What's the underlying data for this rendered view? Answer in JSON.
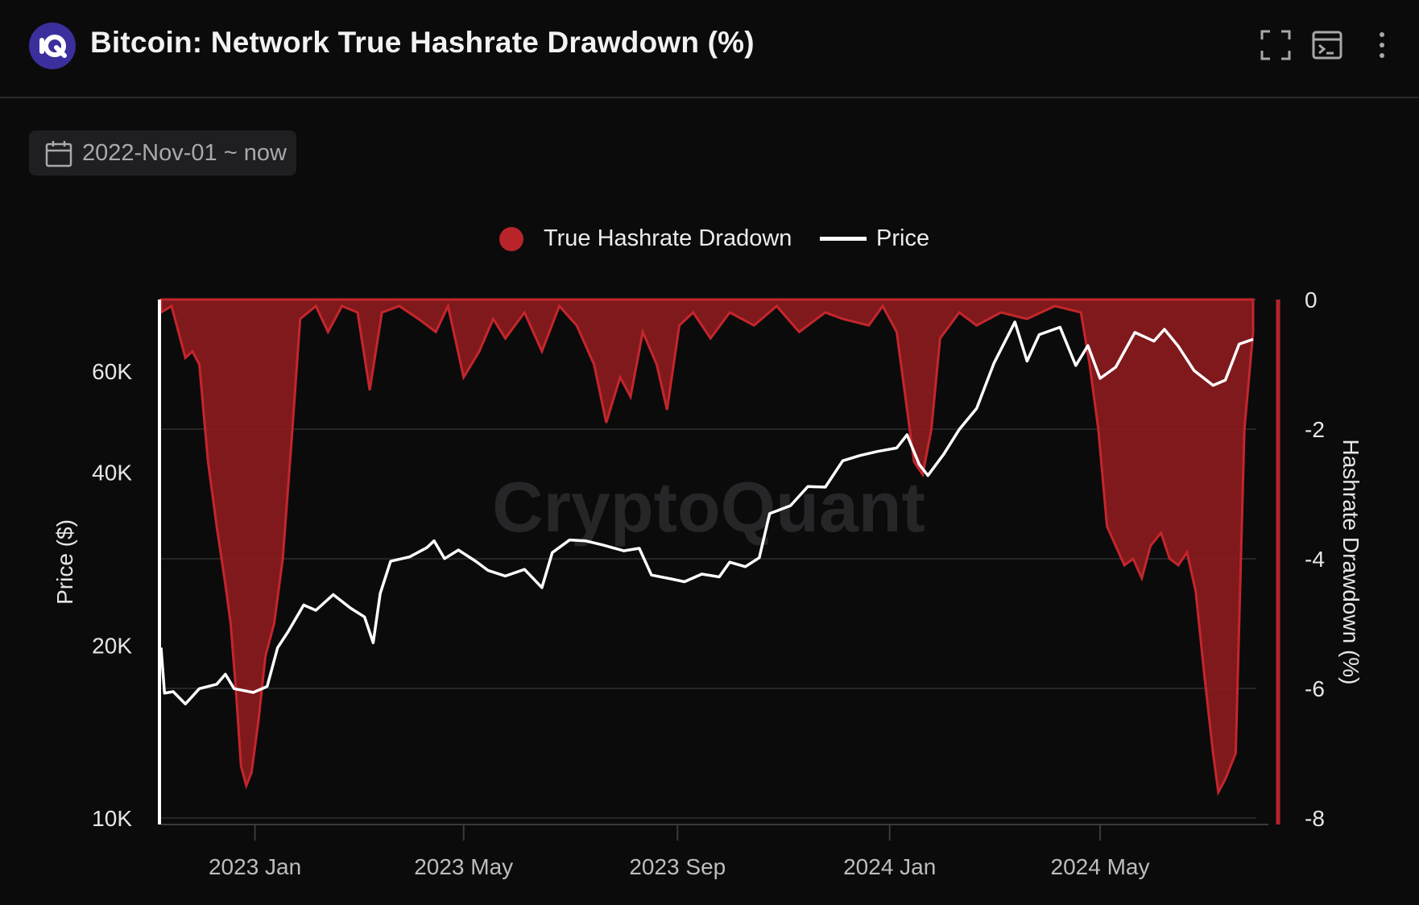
{
  "header": {
    "title": "Bitcoin: Network True Hashrate Drawdown (%)",
    "icons": [
      "logo-icon",
      "fullscreen-icon",
      "terminal-icon",
      "more-vert-icon"
    ]
  },
  "date_range": {
    "label": "2022-Nov-01 ~ now",
    "icon": "calendar-icon"
  },
  "watermark": "CryptoQuant",
  "colors": {
    "drawdown": "#b8242a",
    "price": "#ffffff",
    "background": "#0b0b0c"
  },
  "chart_data": {
    "type": "area",
    "title": "Bitcoin: Network True Hashrate Drawdown (%)",
    "legend": [
      "True Hashrate Dradown",
      "Price"
    ],
    "legend_position": "top-center",
    "grid": true,
    "x_ticks": [
      "2023 Jan",
      "2023 May",
      "2023 Sep",
      "2024 Jan",
      "2024 May"
    ],
    "x_tick_dates": [
      "2023-01-01",
      "2023-05-01",
      "2023-09-01",
      "2024-01-01",
      "2024-05-01"
    ],
    "x_range": [
      "2022-11-08",
      "2024-07-28"
    ],
    "left_axis": {
      "label": "Price ($)",
      "scale": "log",
      "ticks": [
        "10K",
        "20K",
        "40K",
        "60K"
      ],
      "tick_values": [
        10000,
        20000,
        40000,
        60000
      ],
      "range": [
        10000,
        80000
      ]
    },
    "right_axis": {
      "label": "Hashrate Drawdown (%)",
      "ticks": [
        "0",
        "-2",
        "-4",
        "-6",
        "-8"
      ],
      "tick_values": [
        0,
        -2,
        -4,
        -6,
        -8
      ],
      "range": [
        -8,
        0
      ]
    },
    "series": [
      {
        "name": "True Hashrate Dradown",
        "axis": "right",
        "type": "area",
        "points": [
          [
            "2022-11-08",
            -0.2
          ],
          [
            "2022-11-14",
            -0.1
          ],
          [
            "2022-11-18",
            -0.5
          ],
          [
            "2022-11-22",
            -0.9
          ],
          [
            "2022-11-26",
            -0.8
          ],
          [
            "2022-11-30",
            -1.0
          ],
          [
            "2022-12-05",
            -2.5
          ],
          [
            "2022-12-10",
            -3.5
          ],
          [
            "2022-12-15",
            -4.4
          ],
          [
            "2022-12-18",
            -5.0
          ],
          [
            "2022-12-21",
            -6.0
          ],
          [
            "2022-12-24",
            -7.2
          ],
          [
            "2022-12-27",
            -7.5
          ],
          [
            "2022-12-30",
            -7.3
          ],
          [
            "2023-01-03",
            -6.5
          ],
          [
            "2023-01-07",
            -5.5
          ],
          [
            "2023-01-12",
            -5.0
          ],
          [
            "2023-01-17",
            -4.0
          ],
          [
            "2023-01-22",
            -2.2
          ],
          [
            "2023-01-27",
            -0.3
          ],
          [
            "2023-02-05",
            -0.1
          ],
          [
            "2023-02-12",
            -0.5
          ],
          [
            "2023-02-20",
            -0.1
          ],
          [
            "2023-03-01",
            -0.2
          ],
          [
            "2023-03-08",
            -1.4
          ],
          [
            "2023-03-15",
            -0.2
          ],
          [
            "2023-03-25",
            -0.1
          ],
          [
            "2023-04-05",
            -0.3
          ],
          [
            "2023-04-15",
            -0.5
          ],
          [
            "2023-04-22",
            -0.1
          ],
          [
            "2023-05-01",
            -1.2
          ],
          [
            "2023-05-10",
            -0.8
          ],
          [
            "2023-05-18",
            -0.3
          ],
          [
            "2023-05-25",
            -0.6
          ],
          [
            "2023-06-05",
            -0.2
          ],
          [
            "2023-06-15",
            -0.8
          ],
          [
            "2023-06-25",
            -0.1
          ],
          [
            "2023-07-05",
            -0.4
          ],
          [
            "2023-07-15",
            -1.0
          ],
          [
            "2023-07-22",
            -1.9
          ],
          [
            "2023-07-30",
            -1.2
          ],
          [
            "2023-08-05",
            -1.5
          ],
          [
            "2023-08-12",
            -0.5
          ],
          [
            "2023-08-20",
            -1.0
          ],
          [
            "2023-08-26",
            -1.7
          ],
          [
            "2023-09-02",
            -0.4
          ],
          [
            "2023-09-10",
            -0.2
          ],
          [
            "2023-09-20",
            -0.6
          ],
          [
            "2023-10-01",
            -0.2
          ],
          [
            "2023-10-15",
            -0.4
          ],
          [
            "2023-10-28",
            -0.1
          ],
          [
            "2023-11-10",
            -0.5
          ],
          [
            "2023-11-25",
            -0.2
          ],
          [
            "2023-12-05",
            -0.3
          ],
          [
            "2023-12-20",
            -0.4
          ],
          [
            "2023-12-28",
            -0.1
          ],
          [
            "2024-01-05",
            -0.5
          ],
          [
            "2024-01-10",
            -1.5
          ],
          [
            "2024-01-15",
            -2.5
          ],
          [
            "2024-01-20",
            -2.7
          ],
          [
            "2024-01-25",
            -2.0
          ],
          [
            "2024-01-30",
            -0.6
          ],
          [
            "2024-02-10",
            -0.2
          ],
          [
            "2024-02-20",
            -0.4
          ],
          [
            "2024-03-05",
            -0.2
          ],
          [
            "2024-03-20",
            -0.3
          ],
          [
            "2024-04-05",
            -0.1
          ],
          [
            "2024-04-20",
            -0.2
          ],
          [
            "2024-04-25",
            -1.0
          ],
          [
            "2024-04-30",
            -2.0
          ],
          [
            "2024-05-05",
            -3.5
          ],
          [
            "2024-05-10",
            -3.8
          ],
          [
            "2024-05-15",
            -4.1
          ],
          [
            "2024-05-20",
            -4.0
          ],
          [
            "2024-05-25",
            -4.3
          ],
          [
            "2024-05-30",
            -3.8
          ],
          [
            "2024-06-05",
            -3.6
          ],
          [
            "2024-06-10",
            -4.0
          ],
          [
            "2024-06-15",
            -4.1
          ],
          [
            "2024-06-20",
            -3.9
          ],
          [
            "2024-06-25",
            -4.5
          ],
          [
            "2024-06-30",
            -5.8
          ],
          [
            "2024-07-05",
            -7.0
          ],
          [
            "2024-07-08",
            -7.6
          ],
          [
            "2024-07-12",
            -7.4
          ],
          [
            "2024-07-18",
            -7.0
          ],
          [
            "2024-07-23",
            -2.0
          ],
          [
            "2024-07-28",
            -0.5
          ]
        ]
      },
      {
        "name": "Price",
        "axis": "left",
        "type": "line",
        "points": [
          [
            "2022-11-08",
            19800
          ],
          [
            "2022-11-10",
            16500
          ],
          [
            "2022-11-15",
            16600
          ],
          [
            "2022-11-22",
            15800
          ],
          [
            "2022-11-30",
            16800
          ],
          [
            "2022-12-10",
            17100
          ],
          [
            "2022-12-15",
            17800
          ],
          [
            "2022-12-20",
            16800
          ],
          [
            "2022-12-31",
            16550
          ],
          [
            "2023-01-08",
            16950
          ],
          [
            "2023-01-14",
            19800
          ],
          [
            "2023-01-20",
            21100
          ],
          [
            "2023-01-29",
            23500
          ],
          [
            "2023-02-05",
            23000
          ],
          [
            "2023-02-15",
            24500
          ],
          [
            "2023-02-25",
            23200
          ],
          [
            "2023-03-05",
            22400
          ],
          [
            "2023-03-10",
            20200
          ],
          [
            "2023-03-14",
            24600
          ],
          [
            "2023-03-20",
            28000
          ],
          [
            "2023-03-31",
            28500
          ],
          [
            "2023-04-10",
            29600
          ],
          [
            "2023-04-14",
            30400
          ],
          [
            "2023-04-20",
            28300
          ],
          [
            "2023-04-28",
            29300
          ],
          [
            "2023-05-08",
            28000
          ],
          [
            "2023-05-15",
            27000
          ],
          [
            "2023-05-25",
            26400
          ],
          [
            "2023-06-05",
            27100
          ],
          [
            "2023-06-15",
            25200
          ],
          [
            "2023-06-21",
            29000
          ],
          [
            "2023-07-01",
            30500
          ],
          [
            "2023-07-10",
            30400
          ],
          [
            "2023-07-20",
            29900
          ],
          [
            "2023-08-01",
            29200
          ],
          [
            "2023-08-10",
            29500
          ],
          [
            "2023-08-17",
            26500
          ],
          [
            "2023-08-28",
            26100
          ],
          [
            "2023-09-05",
            25800
          ],
          [
            "2023-09-15",
            26600
          ],
          [
            "2023-09-25",
            26300
          ],
          [
            "2023-10-01",
            27900
          ],
          [
            "2023-10-10",
            27400
          ],
          [
            "2023-10-18",
            28400
          ],
          [
            "2023-10-24",
            33900
          ],
          [
            "2023-11-05",
            35000
          ],
          [
            "2023-11-15",
            37800
          ],
          [
            "2023-11-25",
            37700
          ],
          [
            "2023-12-05",
            41900
          ],
          [
            "2023-12-15",
            42800
          ],
          [
            "2023-12-25",
            43500
          ],
          [
            "2024-01-05",
            44100
          ],
          [
            "2024-01-11",
            46500
          ],
          [
            "2024-01-18",
            41300
          ],
          [
            "2024-01-23",
            39500
          ],
          [
            "2024-02-01",
            43000
          ],
          [
            "2024-02-10",
            47500
          ],
          [
            "2024-02-20",
            51700
          ],
          [
            "2024-03-01",
            62000
          ],
          [
            "2024-03-13",
            73100
          ],
          [
            "2024-03-20",
            62500
          ],
          [
            "2024-03-27",
            69500
          ],
          [
            "2024-04-08",
            71600
          ],
          [
            "2024-04-17",
            61400
          ],
          [
            "2024-04-24",
            66500
          ],
          [
            "2024-05-01",
            58300
          ],
          [
            "2024-05-10",
            61000
          ],
          [
            "2024-05-21",
            70100
          ],
          [
            "2024-06-01",
            67700
          ],
          [
            "2024-06-07",
            71000
          ],
          [
            "2024-06-15",
            66300
          ],
          [
            "2024-06-24",
            60200
          ],
          [
            "2024-07-05",
            56700
          ],
          [
            "2024-07-12",
            57900
          ],
          [
            "2024-07-20",
            66900
          ],
          [
            "2024-07-28",
            68200
          ]
        ]
      }
    ]
  }
}
